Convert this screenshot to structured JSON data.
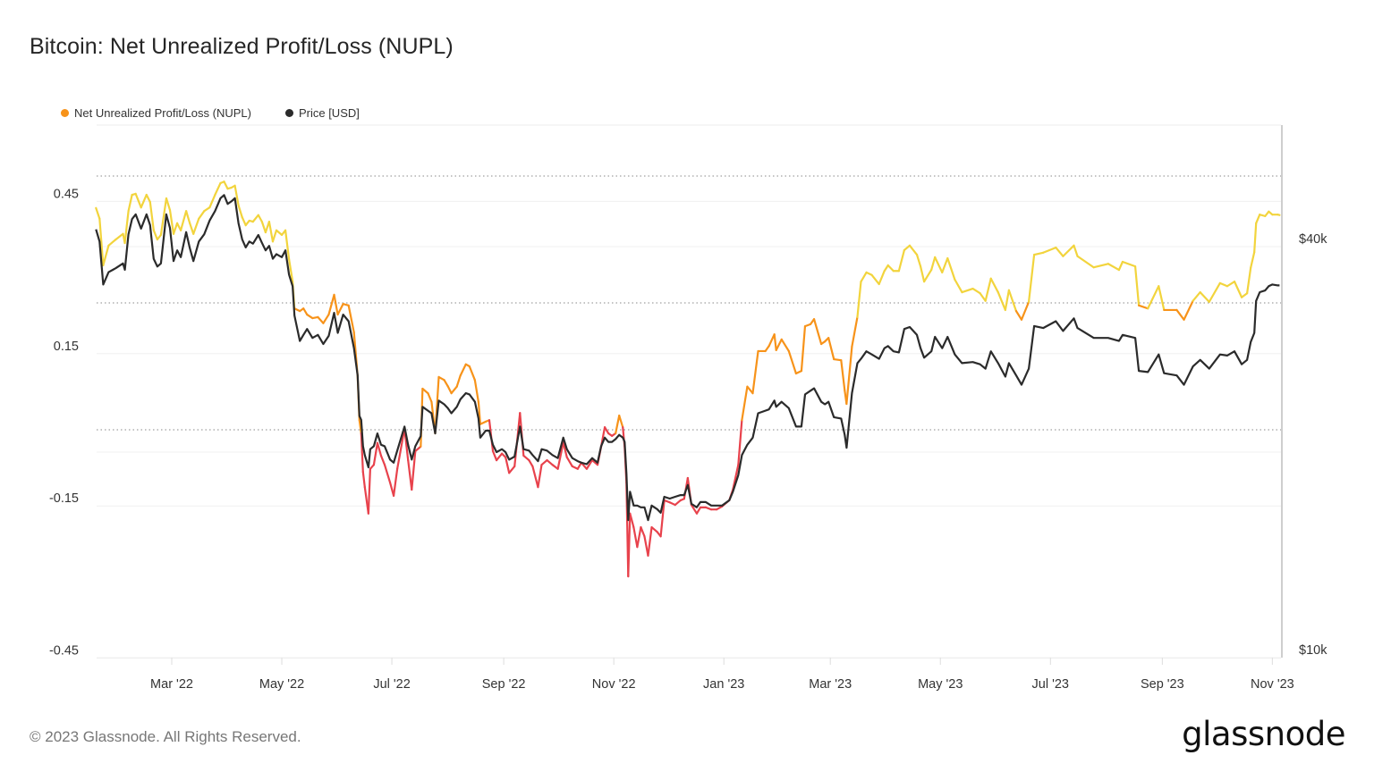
{
  "title": "Bitcoin: Net Unrealized Profit/Loss (NUPL)",
  "footer": {
    "copyright": "© 2023 Glassnode. All Rights Reserved.",
    "logo": "glassnode"
  },
  "colors": {
    "nupl_legend": "#f7931a",
    "nupl_high": "#f2d43d",
    "nupl_mid": "#f7931a",
    "nupl_low": "#e8424c",
    "price": "#2b2b2b"
  },
  "chart_data": {
    "type": "line",
    "title": "Bitcoin: Net Unrealized Profit/Loss (NUPL)",
    "legend": {
      "placement": "top-left",
      "entries": [
        "Net Unrealized Profit/Loss (NUPL)",
        "Price [USD]"
      ]
    },
    "x_ticks": [
      "Mar '22",
      "May '22",
      "Jul '22",
      "Sep '22",
      "Nov '22",
      "Jan '23",
      "Mar '23",
      "May '23",
      "Jul '23",
      "Sep '23",
      "Nov '23"
    ],
    "x_tick_dates": [
      "2022-03-01",
      "2022-05-01",
      "2022-07-01",
      "2022-09-01",
      "2022-11-01",
      "2023-01-01",
      "2023-03-01",
      "2023-05-01",
      "2023-07-01",
      "2023-09-01",
      "2023-11-01"
    ],
    "xlim": [
      "2022-01-18",
      "2023-11-06"
    ],
    "y_left": {
      "ticks": [
        "0.45",
        "0.15",
        "-0.15",
        "-0.45"
      ],
      "tick_values": [
        0.45,
        0.15,
        -0.15,
        -0.45
      ],
      "range": [
        -0.45,
        0.6
      ],
      "threshold_lines": [
        0,
        0.25,
        0.5
      ]
    },
    "y_right": {
      "scale": "log",
      "ticks": [
        "$40k",
        "$10k"
      ],
      "tick_values": [
        40000,
        10000
      ]
    },
    "grid": true,
    "dates": [
      "2022-01-18",
      "2022-01-20",
      "2022-01-22",
      "2022-01-25",
      "2022-01-29",
      "2022-02-02",
      "2022-02-03",
      "2022-02-05",
      "2022-02-07",
      "2022-02-09",
      "2022-02-12",
      "2022-02-15",
      "2022-02-17",
      "2022-02-19",
      "2022-02-21",
      "2022-02-23",
      "2022-02-26",
      "2022-02-28",
      "2022-03-02",
      "2022-03-04",
      "2022-03-06",
      "2022-03-09",
      "2022-03-11",
      "2022-03-13",
      "2022-03-16",
      "2022-03-19",
      "2022-03-22",
      "2022-03-25",
      "2022-03-28",
      "2022-03-30",
      "2022-04-01",
      "2022-04-03",
      "2022-04-05",
      "2022-04-07",
      "2022-04-09",
      "2022-04-11",
      "2022-04-13",
      "2022-04-15",
      "2022-04-18",
      "2022-04-20",
      "2022-04-22",
      "2022-04-24",
      "2022-04-26",
      "2022-04-28",
      "2022-05-01",
      "2022-05-03",
      "2022-05-05",
      "2022-05-07",
      "2022-05-08",
      "2022-05-11",
      "2022-05-13",
      "2022-05-15",
      "2022-05-18",
      "2022-05-21",
      "2022-05-24",
      "2022-05-27",
      "2022-05-30",
      "2022-06-01",
      "2022-06-04",
      "2022-06-07",
      "2022-06-10",
      "2022-06-12",
      "2022-06-13",
      "2022-06-14",
      "2022-06-15",
      "2022-06-16",
      "2022-06-18",
      "2022-06-19",
      "2022-06-21",
      "2022-06-23",
      "2022-06-25",
      "2022-06-27",
      "2022-06-30",
      "2022-07-02",
      "2022-07-04",
      "2022-07-08",
      "2022-07-10",
      "2022-07-12",
      "2022-07-14",
      "2022-07-17",
      "2022-07-18",
      "2022-07-21",
      "2022-07-23",
      "2022-07-25",
      "2022-07-27",
      "2022-07-30",
      "2022-08-01",
      "2022-08-03",
      "2022-08-06",
      "2022-08-08",
      "2022-08-11",
      "2022-08-13",
      "2022-08-16",
      "2022-08-18",
      "2022-08-19",
      "2022-08-22",
      "2022-08-24",
      "2022-08-26",
      "2022-08-28",
      "2022-08-31",
      "2022-09-02",
      "2022-09-04",
      "2022-09-07",
      "2022-09-10",
      "2022-09-12",
      "2022-09-15",
      "2022-09-17",
      "2022-09-20",
      "2022-09-22",
      "2022-09-25",
      "2022-09-28",
      "2022-10-01",
      "2022-10-04",
      "2022-10-06",
      "2022-10-09",
      "2022-10-12",
      "2022-10-14",
      "2022-10-17",
      "2022-10-20",
      "2022-10-23",
      "2022-10-25",
      "2022-10-27",
      "2022-10-29",
      "2022-10-31",
      "2022-11-02",
      "2022-11-04",
      "2022-11-06",
      "2022-11-07",
      "2022-11-08",
      "2022-11-09",
      "2022-11-10",
      "2022-11-12",
      "2022-11-14",
      "2022-11-16",
      "2022-11-18",
      "2022-11-20",
      "2022-11-22",
      "2022-11-25",
      "2022-11-27",
      "2022-11-29",
      "2022-12-02",
      "2022-12-05",
      "2022-12-08",
      "2022-12-10",
      "2022-12-12",
      "2022-12-14",
      "2022-12-17",
      "2022-12-19",
      "2022-12-22",
      "2022-12-25",
      "2022-12-28",
      "2022-12-31",
      "2023-01-04",
      "2023-01-06",
      "2023-01-09",
      "2023-01-11",
      "2023-01-14",
      "2023-01-17",
      "2023-01-20",
      "2023-01-24",
      "2023-01-26",
      "2023-01-29",
      "2023-01-30",
      "2023-02-02",
      "2023-02-06",
      "2023-02-10",
      "2023-02-13",
      "2023-02-15",
      "2023-02-18",
      "2023-02-20",
      "2023-02-24",
      "2023-02-26",
      "2023-02-28",
      "2023-03-03",
      "2023-03-07",
      "2023-03-09",
      "2023-03-10",
      "2023-03-13",
      "2023-03-16",
      "2023-03-18",
      "2023-03-21",
      "2023-03-24",
      "2023-03-28",
      "2023-03-31",
      "2023-04-02",
      "2023-04-05",
      "2023-04-08",
      "2023-04-11",
      "2023-04-14",
      "2023-04-18",
      "2023-04-20",
      "2023-04-22",
      "2023-04-26",
      "2023-04-28",
      "2023-05-02",
      "2023-05-05",
      "2023-05-09",
      "2023-05-13",
      "2023-05-19",
      "2023-05-23",
      "2023-05-26",
      "2023-05-29",
      "2023-06-02",
      "2023-06-06",
      "2023-06-08",
      "2023-06-12",
      "2023-06-15",
      "2023-06-19",
      "2023-06-22",
      "2023-06-27",
      "2023-07-04",
      "2023-07-08",
      "2023-07-14",
      "2023-07-16",
      "2023-07-25",
      "2023-08-02",
      "2023-08-08",
      "2023-08-10",
      "2023-08-17",
      "2023-08-19",
      "2023-08-24",
      "2023-08-30",
      "2023-09-02",
      "2023-09-09",
      "2023-09-13",
      "2023-09-18",
      "2023-09-22",
      "2023-09-27",
      "2023-10-03",
      "2023-10-07",
      "2023-10-11",
      "2023-10-15",
      "2023-10-18",
      "2023-10-20",
      "2023-10-22",
      "2023-10-23",
      "2023-10-25",
      "2023-10-28",
      "2023-10-30",
      "2023-11-01",
      "2023-11-04",
      "2023-11-05"
    ],
    "series": [
      {
        "name": "Net Unrealized Profit/Loss (NUPL)",
        "axis": "left",
        "values": [
          0.437,
          0.416,
          0.324,
          0.363,
          0.375,
          0.386,
          0.368,
          0.431,
          0.463,
          0.465,
          0.438,
          0.463,
          0.449,
          0.393,
          0.375,
          0.384,
          0.456,
          0.433,
          0.386,
          0.407,
          0.393,
          0.431,
          0.407,
          0.386,
          0.416,
          0.431,
          0.438,
          0.463,
          0.486,
          0.489,
          0.475,
          0.477,
          0.481,
          0.442,
          0.419,
          0.403,
          0.412,
          0.41,
          0.423,
          0.41,
          0.389,
          0.41,
          0.371,
          0.393,
          0.384,
          0.393,
          0.336,
          0.292,
          0.239,
          0.234,
          0.239,
          0.227,
          0.22,
          0.222,
          0.21,
          0.227,
          0.266,
          0.227,
          0.248,
          0.245,
          0.192,
          0.107,
          0.019,
          -0.007,
          -0.083,
          -0.113,
          -0.165,
          -0.077,
          -0.069,
          -0.026,
          -0.051,
          -0.069,
          -0.104,
          -0.13,
          -0.077,
          0.002,
          -0.06,
          -0.118,
          -0.042,
          -0.033,
          0.081,
          0.072,
          0.055,
          -0.007,
          0.104,
          0.098,
          0.086,
          0.072,
          0.085,
          0.107,
          0.129,
          0.125,
          0.098,
          0.055,
          0.011,
          0.016,
          0.019,
          -0.042,
          -0.06,
          -0.047,
          -0.054,
          -0.085,
          -0.072,
          0.033,
          -0.051,
          -0.06,
          -0.072,
          -0.113,
          -0.069,
          -0.06,
          -0.069,
          -0.077,
          -0.025,
          -0.054,
          -0.072,
          -0.077,
          -0.065,
          -0.077,
          -0.06,
          -0.069,
          -0.033,
          0.005,
          -0.007,
          -0.012,
          -0.007,
          0.028,
          0.005,
          -0.033,
          -0.104,
          -0.289,
          -0.165,
          -0.192,
          -0.231,
          -0.192,
          -0.21,
          -0.248,
          -0.192,
          -0.201,
          -0.21,
          -0.139,
          -0.143,
          -0.148,
          -0.139,
          -0.136,
          -0.095,
          -0.148,
          -0.165,
          -0.153,
          -0.153,
          -0.157,
          -0.157,
          -0.151,
          -0.139,
          -0.118,
          -0.069,
          0.019,
          0.085,
          0.072,
          0.155,
          0.155,
          0.165,
          0.188,
          0.157,
          0.178,
          0.155,
          0.111,
          0.116,
          0.204,
          0.208,
          0.218,
          0.169,
          0.174,
          0.181,
          0.139,
          0.137,
          0.077,
          0.051,
          0.164,
          0.222,
          0.292,
          0.31,
          0.305,
          0.287,
          0.313,
          0.324,
          0.313,
          0.313,
          0.354,
          0.363,
          0.345,
          0.322,
          0.292,
          0.315,
          0.34,
          0.31,
          0.338,
          0.296,
          0.271,
          0.278,
          0.269,
          0.254,
          0.298,
          0.271,
          0.236,
          0.275,
          0.234,
          0.217,
          0.252,
          0.345,
          0.349,
          0.359,
          0.342,
          0.363,
          0.342,
          0.32,
          0.327,
          0.315,
          0.331,
          0.322,
          0.245,
          0.239,
          0.283,
          0.236,
          0.236,
          0.217,
          0.254,
          0.271,
          0.252,
          0.289,
          0.283,
          0.292,
          0.261,
          0.269,
          0.319,
          0.35,
          0.407,
          0.424,
          0.421,
          0.43,
          0.424,
          0.424,
          0.423
        ]
      },
      {
        "name": "Price [USD]",
        "axis": "right",
        "values": [
          42400,
          40700,
          35200,
          36700,
          37200,
          37800,
          37000,
          41700,
          43900,
          44600,
          42500,
          44600,
          43000,
          38400,
          37400,
          37800,
          44600,
          42600,
          38100,
          39500,
          38600,
          42000,
          39800,
          38100,
          40700,
          41700,
          43700,
          45100,
          47100,
          47600,
          46200,
          46600,
          47100,
          43300,
          41000,
          39900,
          40700,
          40400,
          41600,
          40500,
          39500,
          40100,
          38400,
          39000,
          38600,
          39500,
          36400,
          35000,
          31700,
          29100,
          29700,
          30300,
          29400,
          29700,
          28800,
          29600,
          32000,
          29900,
          31800,
          31100,
          28400,
          25900,
          22600,
          22300,
          20400,
          19800,
          19000,
          20200,
          20400,
          21300,
          20500,
          20400,
          19500,
          19300,
          20100,
          21800,
          20500,
          19500,
          20400,
          21100,
          23300,
          23000,
          22800,
          21300,
          23800,
          23500,
          23200,
          22800,
          23300,
          23900,
          24400,
          24300,
          23700,
          22400,
          21000,
          21500,
          21500,
          20500,
          20000,
          20200,
          20000,
          19500,
          19700,
          21800,
          20200,
          20100,
          19800,
          19400,
          20200,
          20100,
          19800,
          19600,
          21000,
          20200,
          19600,
          19400,
          19300,
          19200,
          19600,
          19300,
          20400,
          21000,
          20700,
          20700,
          20900,
          21200,
          21000,
          20700,
          18600,
          15900,
          17500,
          16700,
          16700,
          16600,
          16600,
          15900,
          16700,
          16500,
          16300,
          17200,
          17100,
          17200,
          17300,
          17300,
          17900,
          16800,
          16600,
          16900,
          16900,
          16700,
          16700,
          16700,
          17000,
          17500,
          18500,
          19800,
          20500,
          21000,
          22800,
          23000,
          23100,
          23800,
          23300,
          23700,
          23200,
          21800,
          21800,
          24300,
          24600,
          24800,
          23700,
          23500,
          23700,
          22500,
          22400,
          21200,
          20300,
          24400,
          27000,
          27400,
          28100,
          27800,
          27400,
          28400,
          28600,
          28100,
          28000,
          30300,
          30500,
          29700,
          28400,
          27500,
          28100,
          29500,
          28400,
          29500,
          27800,
          27000,
          27100,
          26900,
          26500,
          28100,
          27000,
          25800,
          27000,
          25900,
          25100,
          26500,
          30600,
          30400,
          31100,
          30100,
          31400,
          30400,
          29400,
          29400,
          29100,
          29700,
          29400,
          26300,
          26200,
          27800,
          26100,
          25900,
          25100,
          26700,
          27300,
          26500,
          27800,
          27700,
          28100,
          26900,
          27300,
          29000,
          29900,
          33300,
          34300,
          34500,
          35000,
          35200,
          35100,
          35100
        ]
      }
    ]
  }
}
